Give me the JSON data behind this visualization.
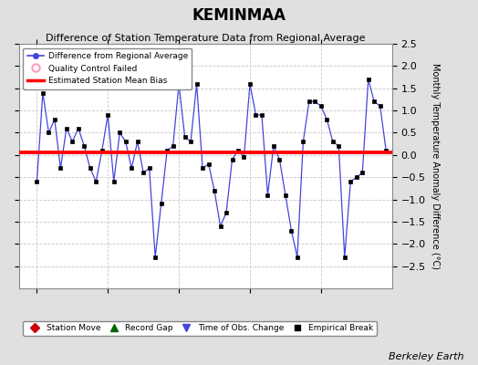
{
  "title": "KEMINMAA",
  "subtitle": "Difference of Station Temperature Data from Regional Average",
  "ylabel_right": "Monthly Temperature Anomaly Difference (°C)",
  "credit": "Berkeley Earth",
  "ylim": [
    -3,
    2.5
  ],
  "yticks": [
    -2.5,
    -2,
    -1.5,
    -1,
    -0.5,
    0,
    0.5,
    1,
    1.5,
    2,
    2.5
  ],
  "bias": 0.05,
  "background_color": "#e0e0e0",
  "plot_bg_color": "#ffffff",
  "line_color": "#4444dd",
  "marker_color": "#000000",
  "bias_color": "#ff0000",
  "months": [
    1996.0,
    1996.0833,
    1996.1667,
    1996.25,
    1996.3333,
    1996.4167,
    1996.5,
    1996.5833,
    1996.6667,
    1996.75,
    1996.8333,
    1996.9167,
    1997.0,
    1997.0833,
    1997.1667,
    1997.25,
    1997.3333,
    1997.4167,
    1997.5,
    1997.5833,
    1997.6667,
    1997.75,
    1997.8333,
    1997.9167,
    1998.0,
    1998.0833,
    1998.1667,
    1998.25,
    1998.3333,
    1998.4167,
    1998.5,
    1998.5833,
    1998.6667,
    1998.75,
    1998.8333,
    1998.9167,
    1999.0,
    1999.0833,
    1999.1667,
    1999.25,
    1999.3333,
    1999.4167,
    1999.5,
    1999.5833,
    1999.6667,
    1999.75,
    1999.8333,
    1999.9167,
    2000.0,
    2000.0833,
    2000.1667,
    2000.25,
    2000.3333,
    2000.4167,
    2000.5,
    2000.5833,
    2000.6667,
    2000.75,
    2000.8333,
    2000.9167
  ],
  "values": [
    -0.6,
    1.4,
    0.5,
    0.8,
    -0.3,
    0.6,
    0.3,
    0.6,
    0.2,
    -0.3,
    -0.6,
    0.1,
    0.9,
    -0.6,
    0.5,
    0.3,
    -0.3,
    0.3,
    -0.4,
    -0.3,
    -2.3,
    -1.1,
    0.1,
    0.2,
    1.6,
    0.4,
    0.3,
    1.6,
    -0.3,
    -0.2,
    -0.8,
    -1.6,
    -1.3,
    -0.1,
    0.1,
    -0.05,
    1.6,
    0.9,
    0.9,
    -0.9,
    0.2,
    -0.1,
    -0.9,
    -1.7,
    -2.3,
    0.3,
    1.2,
    1.2,
    1.1,
    0.8,
    0.3,
    0.2,
    -2.3,
    -0.6,
    -0.5,
    -0.4,
    1.7,
    1.2,
    1.1,
    0.1
  ],
  "xlim": [
    1995.75,
    2001.0
  ],
  "xticks": [
    1996,
    1997,
    1998,
    1999,
    2000
  ],
  "grid_color": "#c8c8c8"
}
